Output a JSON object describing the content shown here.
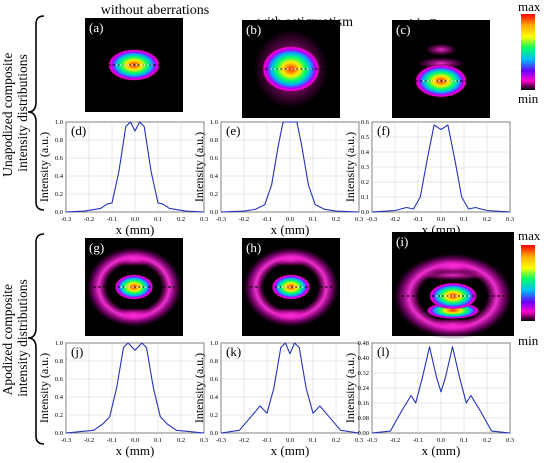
{
  "columns": [
    "without aberrations",
    "with astigmatism",
    "with Coma"
  ],
  "rows": [
    "Unapodized composite intensity distributions",
    "Apodized composite intensity distributions"
  ],
  "colorbar": {
    "max": "max",
    "min": "min"
  },
  "maps": [
    {
      "label": "(a)",
      "style": "plain"
    },
    {
      "label": "(b)",
      "style": "astig"
    },
    {
      "label": "(c)",
      "style": "coma"
    },
    {
      "label": "(g)",
      "style": "apod"
    },
    {
      "label": "(h)",
      "style": "apod-astig"
    },
    {
      "label": "(i)",
      "style": "apod-coma"
    }
  ],
  "chart_data": [
    {
      "type": "line",
      "label": "(d)",
      "xlabel": "x (mm)",
      "ylabel": "Intensity (a.u.)",
      "xlim": [
        -0.3,
        0.3
      ],
      "ylim": [
        0,
        1.0
      ],
      "xticks": [
        "-0.3",
        "-0.2",
        "-0.1",
        "0.0",
        "0.1",
        "0.2",
        "0.3"
      ],
      "yticks": [
        "0.0",
        "0.2",
        "0.4",
        "0.6",
        "0.8",
        "1.0"
      ],
      "x": [
        -0.3,
        -0.22,
        -0.15,
        -0.12,
        -0.1,
        -0.07,
        -0.04,
        -0.02,
        0.0,
        0.02,
        0.04,
        0.07,
        0.1,
        0.12,
        0.15,
        0.22,
        0.3
      ],
      "y": [
        0.0,
        0.01,
        0.04,
        0.09,
        0.1,
        0.45,
        0.95,
        1.0,
        0.9,
        1.0,
        0.95,
        0.45,
        0.1,
        0.09,
        0.04,
        0.01,
        0.0
      ]
    },
    {
      "type": "line",
      "label": "(e)",
      "xlabel": "x (mm)",
      "ylabel": "Intensity (a.u.)",
      "xlim": [
        -0.3,
        0.3
      ],
      "ylim": [
        0,
        1.0
      ],
      "xticks": [
        "-0.3",
        "-0.2",
        "-0.1",
        "0.0",
        "0.1",
        "0.2",
        "0.3"
      ],
      "yticks": [
        "0.0",
        "0.2",
        "0.4",
        "0.6",
        "0.8",
        "1.0"
      ],
      "x": [
        -0.3,
        -0.2,
        -0.15,
        -0.11,
        -0.08,
        -0.05,
        -0.03,
        0.0,
        0.03,
        0.05,
        0.08,
        0.11,
        0.15,
        0.2,
        0.3
      ],
      "y": [
        0.0,
        0.01,
        0.03,
        0.08,
        0.3,
        0.75,
        1.0,
        1.02,
        1.0,
        0.75,
        0.3,
        0.08,
        0.03,
        0.01,
        0.0
      ]
    },
    {
      "type": "line",
      "label": "(f)",
      "xlabel": "x (mm)",
      "ylabel": "Intensity (a.u.)",
      "xlim": [
        -0.3,
        0.3
      ],
      "ylim": [
        0,
        0.6
      ],
      "xticks": [
        "-0.3",
        "-0.2",
        "-0.1",
        "0.0",
        "0.1",
        "0.2",
        "0.3"
      ],
      "yticks": [
        "0.0",
        "0.1",
        "0.2",
        "0.3",
        "0.4",
        "0.5",
        "0.6"
      ],
      "x": [
        -0.3,
        -0.2,
        -0.15,
        -0.12,
        -0.09,
        -0.06,
        -0.03,
        0.0,
        0.03,
        0.06,
        0.09,
        0.12,
        0.15,
        0.2,
        0.3
      ],
      "y": [
        0.0,
        0.01,
        0.03,
        0.02,
        0.1,
        0.35,
        0.58,
        0.55,
        0.58,
        0.35,
        0.1,
        0.02,
        0.03,
        0.01,
        0.0
      ]
    },
    {
      "type": "line",
      "label": "(j)",
      "xlabel": "x (mm)",
      "ylabel": "Intensity (a.u.)",
      "xlim": [
        -0.3,
        0.3
      ],
      "ylim": [
        0,
        1.0
      ],
      "xticks": [
        "-0.3",
        "-0.2",
        "-0.1",
        "0.0",
        "0.1",
        "0.2",
        "0.3"
      ],
      "yticks": [
        "0.0",
        "0.2",
        "0.4",
        "0.6",
        "0.8",
        "1.0"
      ],
      "x": [
        -0.3,
        -0.22,
        -0.18,
        -0.14,
        -0.11,
        -0.08,
        -0.05,
        -0.03,
        0.0,
        0.03,
        0.05,
        0.08,
        0.11,
        0.14,
        0.18,
        0.22,
        0.3
      ],
      "y": [
        0.0,
        0.02,
        0.03,
        0.1,
        0.18,
        0.5,
        0.95,
        1.0,
        0.92,
        1.0,
        0.95,
        0.5,
        0.18,
        0.1,
        0.03,
        0.02,
        0.0
      ]
    },
    {
      "type": "line",
      "label": "(k)",
      "xlabel": "x (mm)",
      "ylabel": "Intensity (a.u.)",
      "xlim": [
        -0.3,
        0.3
      ],
      "ylim": [
        0,
        1.0
      ],
      "xticks": [
        "-0.3",
        "-0.2",
        "-0.1",
        "0.0",
        "0.1",
        "0.2",
        "0.3"
      ],
      "yticks": [
        "0.0",
        "0.2",
        "0.4",
        "0.6",
        "0.8",
        "1.0"
      ],
      "x": [
        -0.3,
        -0.22,
        -0.17,
        -0.13,
        -0.1,
        -0.07,
        -0.04,
        -0.02,
        0.0,
        0.02,
        0.04,
        0.07,
        0.1,
        0.13,
        0.17,
        0.22,
        0.3
      ],
      "y": [
        0.0,
        0.03,
        0.18,
        0.3,
        0.22,
        0.5,
        0.95,
        1.0,
        0.88,
        1.0,
        0.95,
        0.5,
        0.22,
        0.3,
        0.18,
        0.03,
        0.0
      ]
    },
    {
      "type": "line",
      "label": "(l)",
      "xlabel": "x (mm)",
      "ylabel": "Intensity (a.u.)",
      "xlim": [
        -0.3,
        0.3
      ],
      "ylim": [
        0,
        0.48
      ],
      "xticks": [
        "-0.3",
        "-0.2",
        "-0.1",
        "0.0",
        "0.1",
        "0.2",
        "0.3"
      ],
      "yticks": [
        "0.00",
        "0.08",
        "0.16",
        "0.24",
        "0.32",
        "0.40",
        "0.48"
      ],
      "x": [
        -0.3,
        -0.22,
        -0.17,
        -0.13,
        -0.11,
        -0.08,
        -0.05,
        -0.02,
        0.0,
        0.02,
        0.05,
        0.08,
        0.11,
        0.13,
        0.17,
        0.22,
        0.3
      ],
      "y": [
        0.0,
        0.01,
        0.12,
        0.2,
        0.16,
        0.3,
        0.46,
        0.3,
        0.22,
        0.3,
        0.46,
        0.3,
        0.16,
        0.2,
        0.12,
        0.01,
        0.0
      ]
    }
  ]
}
